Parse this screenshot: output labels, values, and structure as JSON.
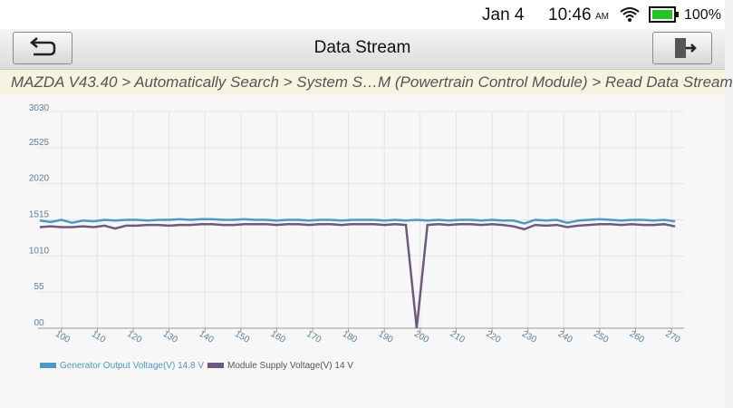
{
  "status_bar": {
    "date": "Jan 4",
    "time": "10:46",
    "ampm": "AM",
    "battery": "100%"
  },
  "header": {
    "title": "Data Stream"
  },
  "breadcrumb": "MAZDA V43.40 > Automatically Search > System S…M (Powertrain Control Module) > Read Data Stream",
  "chart_data": {
    "type": "line",
    "x": [
      94,
      97,
      100,
      103,
      106,
      109,
      112,
      115,
      118,
      121,
      124,
      127,
      130,
      133,
      136,
      139,
      142,
      145,
      148,
      151,
      154,
      157,
      160,
      163,
      166,
      169,
      172,
      175,
      178,
      181,
      184,
      187,
      190,
      193,
      196,
      199,
      202,
      205,
      208,
      211,
      214,
      217,
      220,
      223,
      226,
      229,
      232,
      235,
      238,
      241,
      244,
      247,
      250,
      253,
      256,
      259,
      262,
      265,
      268,
      271
    ],
    "series": [
      {
        "name": "Generator Output Voltage(V) 14.8 V",
        "color": "#4f97c4",
        "values": [
          14.9,
          14.7,
          15.0,
          14.6,
          14.9,
          14.8,
          15.0,
          14.9,
          15.0,
          15.0,
          14.9,
          15.0,
          15.0,
          15.1,
          15.0,
          15.1,
          15.1,
          15.0,
          15.0,
          15.1,
          15.0,
          15.0,
          14.9,
          15.0,
          15.0,
          14.9,
          15.0,
          15.0,
          14.9,
          15.0,
          15.0,
          15.0,
          14.9,
          15.0,
          14.9,
          15.0,
          14.9,
          15.0,
          14.9,
          15.0,
          15.0,
          14.9,
          15.0,
          14.9,
          14.9,
          14.5,
          15.0,
          14.9,
          15.0,
          14.6,
          14.9,
          15.0,
          15.1,
          15.0,
          14.9,
          15.0,
          15.0,
          14.9,
          15.0,
          14.8
        ]
      },
      {
        "name": "Module Supply Voltage(V) 14 V",
        "color": "#6e5a7e",
        "axis": "y2",
        "values": [
          14.0,
          14.1,
          14.0,
          14.0,
          14.1,
          14.0,
          14.2,
          13.8,
          14.2,
          14.2,
          14.3,
          14.3,
          14.2,
          14.3,
          14.3,
          14.4,
          14.4,
          14.3,
          14.3,
          14.4,
          14.4,
          14.4,
          14.3,
          14.4,
          14.4,
          14.3,
          14.4,
          14.4,
          14.3,
          14.4,
          14.4,
          14.4,
          14.3,
          14.4,
          14.3,
          0,
          14.3,
          14.4,
          14.3,
          14.4,
          14.4,
          14.3,
          14.4,
          14.3,
          14.1,
          13.7,
          14.3,
          14.2,
          14.3,
          14.0,
          14.2,
          14.3,
          14.4,
          14.4,
          14.3,
          14.4,
          14.3,
          14.3,
          14.4,
          14.1
        ]
      }
    ],
    "xlim": [
      93.5,
      273.5
    ],
    "xticks": [
      100,
      110,
      120,
      130,
      140,
      150,
      160,
      170,
      180,
      190,
      200,
      210,
      220,
      230,
      240,
      250,
      260,
      270
    ],
    "ylim": [
      0,
      30
    ],
    "yticks": [
      0,
      5,
      10,
      15,
      20,
      25,
      30
    ],
    "y2lim": [
      0,
      30
    ],
    "y2ticks": [
      0,
      5,
      10,
      15,
      20,
      25,
      30
    ],
    "grid": true
  }
}
